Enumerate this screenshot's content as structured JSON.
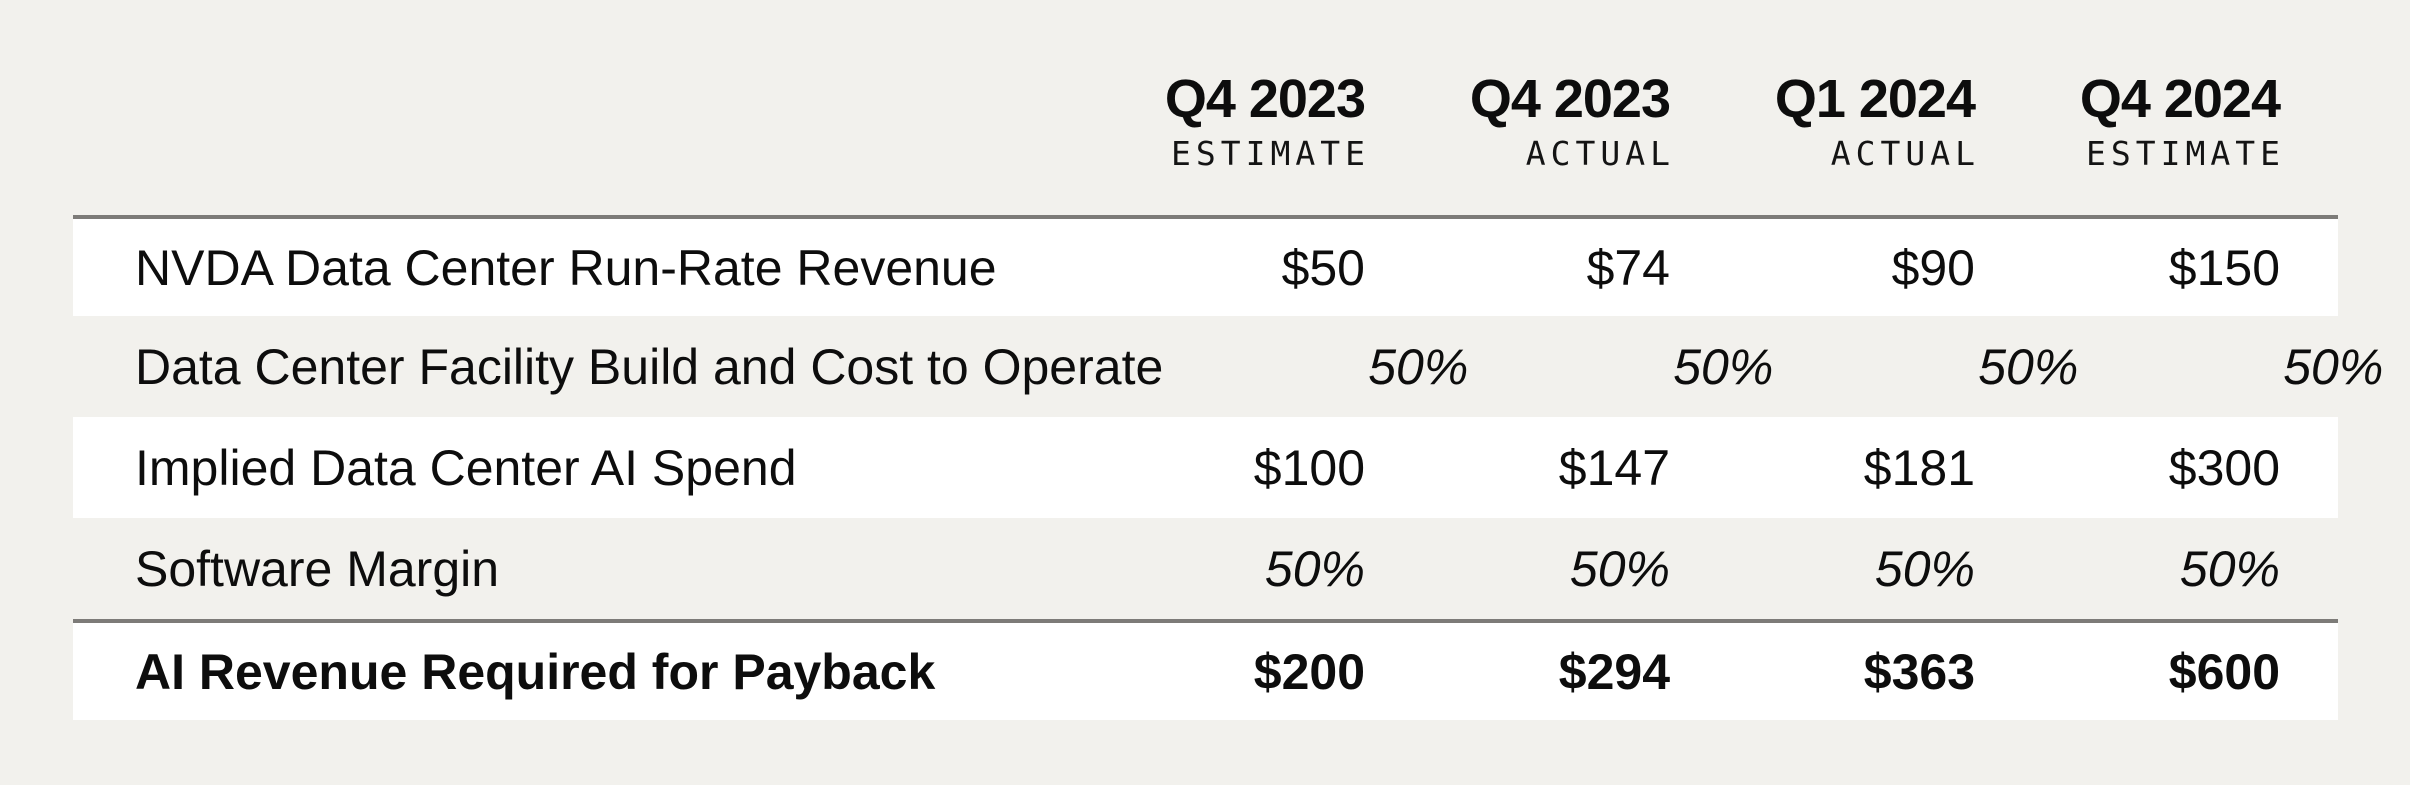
{
  "page": {
    "background_color": "#f2f1ed",
    "stripe_color": "#ffffff",
    "rule_color": "#7d7b78",
    "text_color": "#0d0d0d"
  },
  "table": {
    "columns": [
      {
        "period": "Q4 2023",
        "type": "ESTIMATE"
      },
      {
        "period": "Q4 2023",
        "type": "ACTUAL"
      },
      {
        "period": "Q1 2024",
        "type": "ACTUAL"
      },
      {
        "period": "Q4 2024",
        "type": "ESTIMATE"
      }
    ],
    "rows": [
      {
        "label": "NVDA Data Center Run-Rate Revenue",
        "values": [
          "$50",
          "$74",
          "$90",
          "$150"
        ]
      },
      {
        "label": "Data Center Facility Build and Cost to Operate",
        "values": [
          "50%",
          "50%",
          "50%",
          "50%"
        ]
      },
      {
        "label": "Implied Data Center AI Spend",
        "values": [
          "$100",
          "$147",
          "$181",
          "$300"
        ]
      },
      {
        "label": "Software Margin",
        "values": [
          "50%",
          "50%",
          "50%",
          "50%"
        ]
      },
      {
        "label": "AI Revenue Required for Payback",
        "values": [
          "$200",
          "$294",
          "$363",
          "$600"
        ]
      }
    ]
  },
  "chart_data": {
    "type": "table",
    "title": "",
    "column_headers": [
      "Q4 2023 ESTIMATE",
      "Q4 2023 ACTUAL",
      "Q1 2024 ACTUAL",
      "Q4 2024 ESTIMATE"
    ],
    "row_labels": [
      "NVDA Data Center Run-Rate Revenue",
      "Data Center Facility Build and Cost to Operate",
      "Implied Data Center AI Spend",
      "Software Margin",
      "AI Revenue Required for Payback"
    ],
    "cells": [
      [
        "$50",
        "$74",
        "$90",
        "$150"
      ],
      [
        "50%",
        "50%",
        "50%",
        "50%"
      ],
      [
        "$100",
        "$147",
        "$181",
        "$300"
      ],
      [
        "50%",
        "50%",
        "50%",
        "50%"
      ],
      [
        "$200",
        "$294",
        "$363",
        "$600"
      ]
    ],
    "notes": {
      "italic_rows": [
        "Data Center Facility Build and Cost to Operate",
        "Software Margin"
      ],
      "bold_total_row": "AI Revenue Required for Payback",
      "striped_rows_white": [
        1,
        3,
        5
      ],
      "horizontal_rules_above_rows": [
        1,
        5
      ]
    }
  }
}
